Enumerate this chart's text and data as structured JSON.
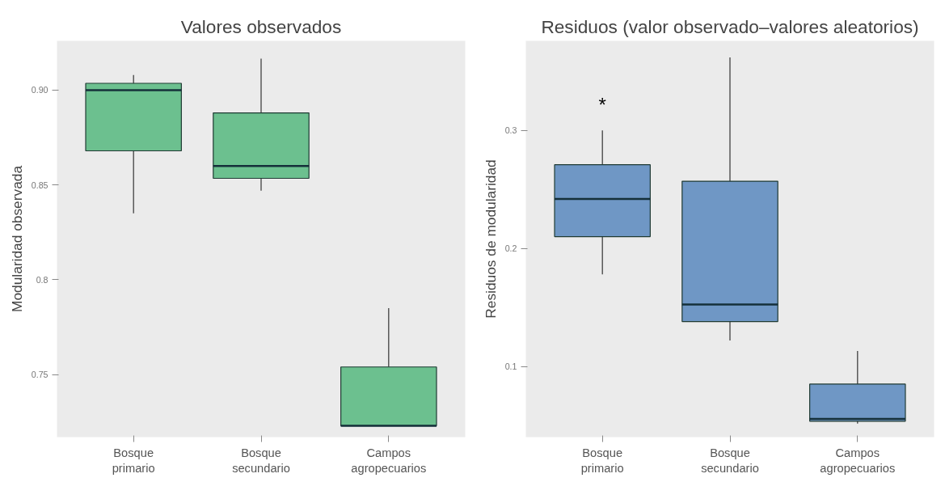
{
  "chart_data": [
    {
      "type": "box",
      "title": "Valores observados",
      "ylabel": "Modularidad observada",
      "categories": [
        "Bosque primario",
        "Bosque secundario",
        "Campos agropecuarios"
      ],
      "color": "#6cc08f",
      "ylim": [
        0.717,
        0.926
      ],
      "yticks": [
        0.75,
        0.8,
        0.85,
        {
          "value": 0.9,
          "label": "0.90"
        }
      ],
      "grid": false,
      "boxes": [
        {
          "low": 0.835,
          "q1": 0.868,
          "median": 0.9,
          "q3": 0.9036,
          "high": 0.908
        },
        {
          "low": 0.847,
          "q1": 0.8535,
          "median": 0.86,
          "q3": 0.888,
          "high": 0.9166
        },
        {
          "low": 0.723,
          "q1": 0.723,
          "median": 0.723,
          "q3": 0.754,
          "high": 0.785
        }
      ]
    },
    {
      "type": "box",
      "title": "Residuos (valor observado–valores aleatorios)",
      "ylabel": "Residuos de modularidad",
      "categories": [
        "Bosque primario",
        "Bosque secundario",
        "Campos agropecuarios"
      ],
      "color": "#6f97c5",
      "ylim": [
        0.04,
        0.376
      ],
      "yticks": [
        0.1,
        0.2,
        0.3
      ],
      "grid": false,
      "boxes": [
        {
          "low": 0.178,
          "q1": 0.21,
          "median": 0.242,
          "q3": 0.271,
          "high": 0.3
        },
        {
          "low": 0.122,
          "q1": 0.138,
          "median": 0.1525,
          "q3": 0.257,
          "high": 0.362
        },
        {
          "low": 0.0515,
          "q1": 0.0535,
          "median": 0.0555,
          "q3": 0.085,
          "high": 0.113
        }
      ],
      "annotations": [
        "*"
      ]
    }
  ]
}
